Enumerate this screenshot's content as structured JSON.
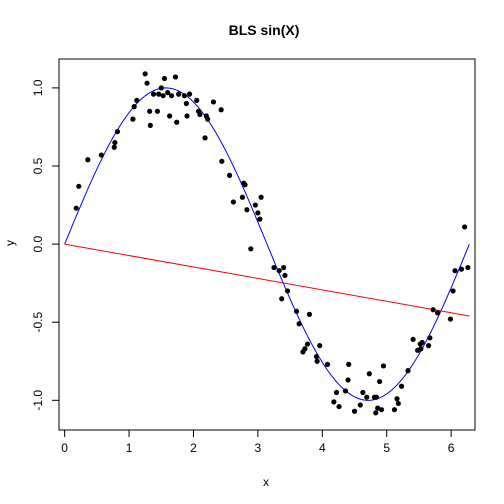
{
  "chart_data": {
    "type": "scatter",
    "title": "BLS sin(X)",
    "xlabel": "x",
    "ylabel": "y",
    "xlim": [
      -0.0875,
      6.3706
    ],
    "ylim": [
      -1.19,
      1.185
    ],
    "x_ticks": [
      0,
      1,
      2,
      3,
      4,
      5,
      6
    ],
    "x_tick_labels": [
      "0",
      "1",
      "2",
      "3",
      "4",
      "5",
      "6"
    ],
    "y_ticks": [
      -1.0,
      -0.5,
      0.0,
      0.5,
      1.0
    ],
    "y_tick_labels": [
      "-1.0",
      "-0.5",
      "0.0",
      "0.5",
      "1.0"
    ],
    "grid": false,
    "colors": {
      "points": "#000000",
      "sine_curve": "#0000ff",
      "fit_line": "#ff0000",
      "axes": "#000000"
    },
    "points": [
      [
        0.18,
        0.23
      ],
      [
        0.22,
        0.37
      ],
      [
        0.36,
        0.54
      ],
      [
        0.57,
        0.57
      ],
      [
        0.77,
        0.62
      ],
      [
        0.78,
        0.65
      ],
      [
        0.82,
        0.72
      ],
      [
        1.06,
        0.8
      ],
      [
        1.08,
        0.88
      ],
      [
        1.12,
        0.92
      ],
      [
        1.25,
        1.09
      ],
      [
        1.28,
        1.03
      ],
      [
        1.32,
        0.85
      ],
      [
        1.33,
        0.76
      ],
      [
        1.38,
        0.96
      ],
      [
        1.44,
        0.85
      ],
      [
        1.46,
        0.96
      ],
      [
        1.5,
        1.0
      ],
      [
        1.53,
        0.95
      ],
      [
        1.55,
        1.06
      ],
      [
        1.6,
        0.97
      ],
      [
        1.63,
        0.82
      ],
      [
        1.66,
        0.95
      ],
      [
        1.72,
        1.07
      ],
      [
        1.74,
        0.78
      ],
      [
        1.77,
        0.96
      ],
      [
        1.86,
        0.95
      ],
      [
        1.89,
        0.9
      ],
      [
        1.9,
        0.82
      ],
      [
        1.94,
        0.96
      ],
      [
        2.05,
        0.92
      ],
      [
        2.08,
        0.85
      ],
      [
        2.1,
        0.83
      ],
      [
        2.18,
        0.68
      ],
      [
        2.2,
        0.82
      ],
      [
        2.22,
        0.8
      ],
      [
        2.31,
        0.91
      ],
      [
        2.43,
        0.86
      ],
      [
        2.44,
        0.53
      ],
      [
        2.56,
        0.44
      ],
      [
        2.62,
        0.27
      ],
      [
        2.76,
        0.3
      ],
      [
        2.78,
        0.39
      ],
      [
        2.8,
        0.38
      ],
      [
        2.83,
        0.22
      ],
      [
        2.89,
        -0.03
      ],
      [
        2.96,
        0.25
      ],
      [
        3.0,
        0.2
      ],
      [
        3.03,
        0.16
      ],
      [
        3.05,
        0.3
      ],
      [
        3.25,
        -0.15
      ],
      [
        3.33,
        -0.17
      ],
      [
        3.37,
        -0.35
      ],
      [
        3.4,
        -0.15
      ],
      [
        3.42,
        -0.2
      ],
      [
        3.46,
        -0.3
      ],
      [
        3.6,
        -0.43
      ],
      [
        3.64,
        -0.51
      ],
      [
        3.7,
        -0.69
      ],
      [
        3.73,
        -0.67
      ],
      [
        3.77,
        -0.64
      ],
      [
        3.8,
        -0.45
      ],
      [
        3.91,
        -0.72
      ],
      [
        3.92,
        -0.75
      ],
      [
        3.96,
        -0.65
      ],
      [
        4.08,
        -0.77
      ],
      [
        4.18,
        -1.01
      ],
      [
        4.22,
        -0.95
      ],
      [
        4.26,
        -1.04
      ],
      [
        4.36,
        -0.94
      ],
      [
        4.4,
        -0.87
      ],
      [
        4.41,
        -0.77
      ],
      [
        4.5,
        -1.07
      ],
      [
        4.59,
        -1.03
      ],
      [
        4.63,
        -0.95
      ],
      [
        4.69,
        -0.98
      ],
      [
        4.73,
        -0.83
      ],
      [
        4.81,
        -0.98
      ],
      [
        4.83,
        -1.08
      ],
      [
        4.84,
        -0.98
      ],
      [
        4.86,
        -1.05
      ],
      [
        4.89,
        -0.88
      ],
      [
        4.92,
        -1.06
      ],
      [
        4.95,
        -0.78
      ],
      [
        5.12,
        -1.06
      ],
      [
        5.16,
        -0.99
      ],
      [
        5.18,
        -1.02
      ],
      [
        5.23,
        -0.91
      ],
      [
        5.33,
        -0.81
      ],
      [
        5.41,
        -0.61
      ],
      [
        5.48,
        -0.68
      ],
      [
        5.52,
        -0.64
      ],
      [
        5.53,
        -0.67
      ],
      [
        5.55,
        -0.63
      ],
      [
        5.65,
        -0.65
      ],
      [
        5.67,
        -0.6
      ],
      [
        5.72,
        -0.42
      ],
      [
        5.79,
        -0.44
      ],
      [
        5.99,
        -0.48
      ],
      [
        6.03,
        -0.3
      ],
      [
        6.06,
        -0.17
      ],
      [
        6.16,
        -0.16
      ],
      [
        6.21,
        0.11
      ],
      [
        6.26,
        -0.15
      ]
    ],
    "series": [
      {
        "type": "line",
        "function": "sin",
        "x_range": [
          0,
          6.2832
        ]
      },
      {
        "type": "line",
        "x": [
          0,
          6.2832
        ],
        "y": [
          0,
          -0.46
        ]
      }
    ]
  }
}
